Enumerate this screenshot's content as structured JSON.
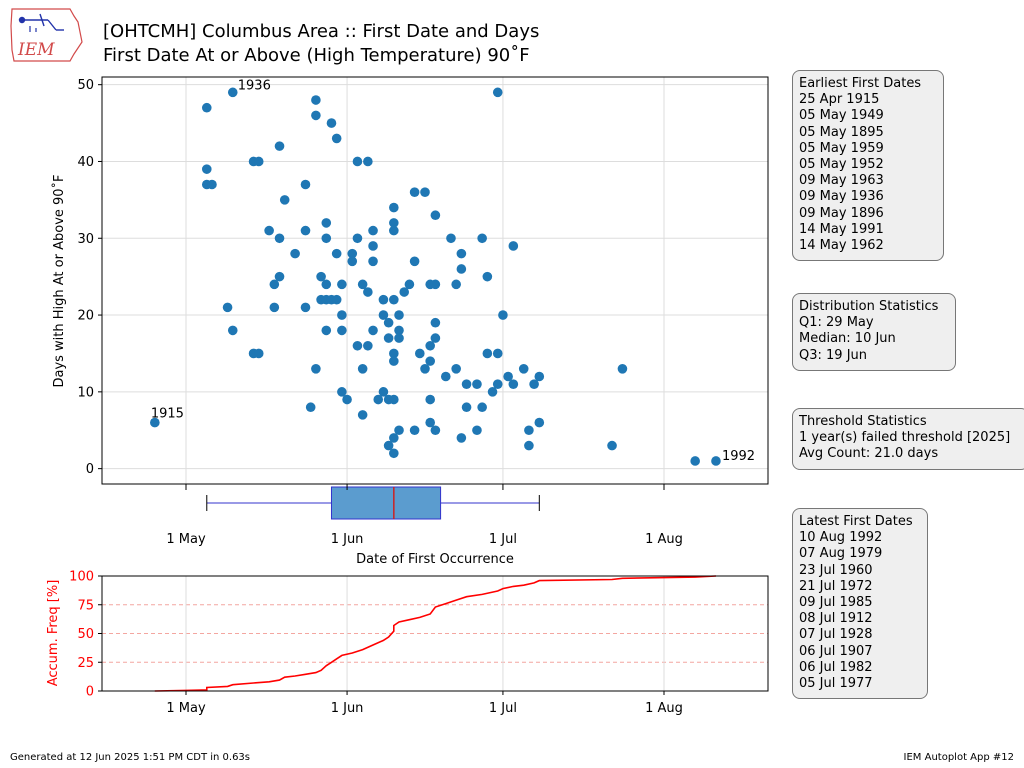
{
  "header": {
    "logo_text": "IEM",
    "title_line1": "[OHTCMH] Columbus Area :: First Date and Days",
    "title_line2": "First Date At or Above (High Temperature) 90˚F"
  },
  "chart_data": [
    {
      "type": "scatter",
      "xlabel": "Date of First Occurrence",
      "ylabel": "Days with High At or Above 90˚F",
      "x_ticks": [
        "1 May",
        "1 Jun",
        "1 Jul",
        "1 Aug"
      ],
      "y_ticks": [
        "0",
        "10",
        "20",
        "30",
        "40",
        "50"
      ],
      "ylim": [
        -2,
        51
      ],
      "grid": true,
      "x_unit": "date",
      "points": [
        [
          "Apr 25",
          6
        ],
        [
          "May 5",
          47
        ],
        [
          "May 5",
          39
        ],
        [
          "May 5",
          37
        ],
        [
          "May 6",
          37
        ],
        [
          "May 9",
          21
        ],
        [
          "May 10",
          49
        ],
        [
          "May 10",
          18
        ],
        [
          "May 14",
          40
        ],
        [
          "May 15",
          40
        ],
        [
          "May 14",
          15
        ],
        [
          "May 15",
          15
        ],
        [
          "May 17",
          31
        ],
        [
          "May 18",
          24
        ],
        [
          "May 18",
          21
        ],
        [
          "May 19",
          42
        ],
        [
          "May 19",
          30
        ],
        [
          "May 19",
          25
        ],
        [
          "May 20",
          35
        ],
        [
          "May 22",
          28
        ],
        [
          "May 24",
          37
        ],
        [
          "May 24",
          31
        ],
        [
          "May 24",
          21
        ],
        [
          "May 25",
          8
        ],
        [
          "May 26",
          48
        ],
        [
          "May 26",
          46
        ],
        [
          "May 26",
          13
        ],
        [
          "May 27",
          25
        ],
        [
          "May 27",
          22
        ],
        [
          "May 28",
          32
        ],
        [
          "May 28",
          30
        ],
        [
          "May 28",
          24
        ],
        [
          "May 28",
          22
        ],
        [
          "May 28",
          18
        ],
        [
          "May 29",
          45
        ],
        [
          "May 29",
          22
        ],
        [
          "May 30",
          43
        ],
        [
          "May 30",
          28
        ],
        [
          "May 30",
          22
        ],
        [
          "May 31",
          24
        ],
        [
          "May 31",
          20
        ],
        [
          "May 31",
          18
        ],
        [
          "May 31",
          10
        ],
        [
          "Jun 1",
          9
        ],
        [
          "Jun 2",
          28
        ],
        [
          "Jun 2",
          27
        ],
        [
          "Jun 3",
          40
        ],
        [
          "Jun 3",
          30
        ],
        [
          "Jun 3",
          16
        ],
        [
          "Jun 4",
          24
        ],
        [
          "Jun 4",
          13
        ],
        [
          "Jun 4",
          7
        ],
        [
          "Jun 5",
          40
        ],
        [
          "Jun 5",
          23
        ],
        [
          "Jun 5",
          16
        ],
        [
          "Jun 6",
          31
        ],
        [
          "Jun 6",
          29
        ],
        [
          "Jun 6",
          27
        ],
        [
          "Jun 6",
          18
        ],
        [
          "Jun 7",
          9
        ],
        [
          "Jun 8",
          22
        ],
        [
          "Jun 8",
          20
        ],
        [
          "Jun 8",
          10
        ],
        [
          "Jun 9",
          19
        ],
        [
          "Jun 9",
          17
        ],
        [
          "Jun 9",
          9
        ],
        [
          "Jun 9",
          3
        ],
        [
          "Jun 10",
          34
        ],
        [
          "Jun 10",
          32
        ],
        [
          "Jun 10",
          31
        ],
        [
          "Jun 10",
          22
        ],
        [
          "Jun 10",
          15
        ],
        [
          "Jun 10",
          14
        ],
        [
          "Jun 10",
          9
        ],
        [
          "Jun 10",
          4
        ],
        [
          "Jun 10",
          2
        ],
        [
          "Jun 11",
          20
        ],
        [
          "Jun 11",
          18
        ],
        [
          "Jun 11",
          17
        ],
        [
          "Jun 11",
          5
        ],
        [
          "Jun 12",
          23
        ],
        [
          "Jun 13",
          24
        ],
        [
          "Jun 14",
          36
        ],
        [
          "Jun 14",
          27
        ],
        [
          "Jun 14",
          5
        ],
        [
          "Jun 15",
          15
        ],
        [
          "Jun 16",
          36
        ],
        [
          "Jun 16",
          13
        ],
        [
          "Jun 17",
          24
        ],
        [
          "Jun 17",
          16
        ],
        [
          "Jun 17",
          14
        ],
        [
          "Jun 17",
          9
        ],
        [
          "Jun 17",
          6
        ],
        [
          "Jun 18",
          33
        ],
        [
          "Jun 18",
          24
        ],
        [
          "Jun 18",
          19
        ],
        [
          "Jun 18",
          17
        ],
        [
          "Jun 18",
          5
        ],
        [
          "Jun 20",
          12
        ],
        [
          "Jun 21",
          30
        ],
        [
          "Jun 22",
          24
        ],
        [
          "Jun 22",
          13
        ],
        [
          "Jun 23",
          28
        ],
        [
          "Jun 23",
          26
        ],
        [
          "Jun 23",
          4
        ],
        [
          "Jun 24",
          11
        ],
        [
          "Jun 24",
          8
        ],
        [
          "Jun 26",
          11
        ],
        [
          "Jun 26",
          5
        ],
        [
          "Jun 27",
          30
        ],
        [
          "Jun 27",
          8
        ],
        [
          "Jun 28",
          25
        ],
        [
          "Jun 28",
          15
        ],
        [
          "Jun 29",
          10
        ],
        [
          "Jun 30",
          49
        ],
        [
          "Jun 30",
          15
        ],
        [
          "Jun 30",
          11
        ],
        [
          "Jul 1",
          20
        ],
        [
          "Jul 2",
          12
        ],
        [
          "Jul 3",
          29
        ],
        [
          "Jul 3",
          11
        ],
        [
          "Jul 5",
          13
        ],
        [
          "Jul 6",
          5
        ],
        [
          "Jul 6",
          3
        ],
        [
          "Jul 7",
          11
        ],
        [
          "Jul 8",
          12
        ],
        [
          "Jul 8",
          6
        ],
        [
          "Jul 22",
          3
        ],
        [
          "Jul 24",
          13
        ],
        [
          "Aug 7",
          1
        ],
        [
          "Aug 11",
          1
        ]
      ],
      "annotations": [
        {
          "label": "1915",
          "x": "Apr 25",
          "y": 6
        },
        {
          "label": "1936",
          "x": "May 10",
          "y": 49
        },
        {
          "label": "1992",
          "x": "Aug 11",
          "y": 1
        }
      ],
      "boxplot": {
        "min": "May 5",
        "q1": "May 29",
        "median": "Jun 10",
        "q3": "Jun 19",
        "max": "Jul 8"
      },
      "colors": {
        "points": "#1f77b4",
        "box_fill": "#5b9ccf",
        "box_edge": "#3333cc",
        "median": "#cc2222",
        "whisker": "#3333cc"
      }
    },
    {
      "type": "line",
      "ylabel": "Accum. Freq [%]",
      "x_ticks": [
        "1 May",
        "1 Jun",
        "1 Jul",
        "1 Aug"
      ],
      "y_ticks": [
        "0",
        "25",
        "50",
        "75",
        "100"
      ],
      "ylim": [
        0,
        100
      ],
      "grid": "horizontal dashed",
      "x_unit": "date",
      "series": [
        {
          "color": "#ff0000",
          "points": [
            [
              "Apr 25",
              0
            ],
            [
              "May 1",
              0.5
            ],
            [
              "May 5",
              1
            ],
            [
              "May 5",
              3
            ],
            [
              "May 9",
              4
            ],
            [
              "May 10",
              5.5
            ],
            [
              "May 14",
              7
            ],
            [
              "May 17",
              8
            ],
            [
              "May 19",
              9.5
            ],
            [
              "May 20",
              12
            ],
            [
              "May 22",
              13
            ],
            [
              "May 24",
              14.5
            ],
            [
              "May 26",
              16
            ],
            [
              "May 27",
              18
            ],
            [
              "May 28",
              22
            ],
            [
              "May 29",
              25
            ],
            [
              "May 30",
              28
            ],
            [
              "May 31",
              31
            ],
            [
              "Jun 2",
              33
            ],
            [
              "Jun 4",
              36
            ],
            [
              "Jun 6",
              40
            ],
            [
              "Jun 8",
              44
            ],
            [
              "Jun 9",
              47
            ],
            [
              "Jun 10",
              52
            ],
            [
              "Jun 10",
              57
            ],
            [
              "Jun 11",
              60
            ],
            [
              "Jun 13",
              62
            ],
            [
              "Jun 15",
              64
            ],
            [
              "Jun 17",
              67
            ],
            [
              "Jun 18",
              73
            ],
            [
              "Jun 20",
              76
            ],
            [
              "Jun 22",
              79
            ],
            [
              "Jun 24",
              82
            ],
            [
              "Jun 27",
              84
            ],
            [
              "Jun 30",
              87
            ],
            [
              "Jul 1",
              89
            ],
            [
              "Jul 3",
              91
            ],
            [
              "Jul 5",
              92
            ],
            [
              "Jul 7",
              94
            ],
            [
              "Jul 8",
              96
            ],
            [
              "Jul 22",
              97
            ],
            [
              "Jul 24",
              98
            ],
            [
              "Aug 7",
              99
            ],
            [
              "Aug 11",
              100
            ]
          ]
        }
      ],
      "colors": {
        "grid": "#f4a6a0",
        "axis_label": "#ff0000"
      }
    }
  ],
  "stats_boxes": {
    "earliest": {
      "title": "Earliest First Dates",
      "items": [
        "25 Apr 1915",
        "05 May 1949",
        "05 May 1895",
        "05 May 1959",
        "05 May 1952",
        "09 May 1963",
        "09 May 1936",
        "09 May 1896",
        "14 May 1991",
        "14 May 1962"
      ]
    },
    "distribution": {
      "title": "Distribution Statistics",
      "items": [
        "Q1: 29 May",
        "Median: 10 Jun",
        "Q3: 19 Jun"
      ]
    },
    "threshold": {
      "title": "Threshold Statistics",
      "items": [
        "1 year(s) failed threshold [2025]",
        "Avg Count: 21.0 days"
      ]
    },
    "latest": {
      "title": "Latest First Dates",
      "items": [
        "10 Aug 1992",
        "07 Aug 1979",
        "23 Jul 1960",
        "21 Jul 1972",
        "09 Jul 1985",
        "08 Jul 1912",
        "07 Jul 1928",
        "06 Jul 1907",
        "06 Jul 1982",
        "05 Jul 1977"
      ]
    }
  },
  "footer": {
    "left": "Generated at 12 Jun 2025 1:51 PM CDT in 0.63s",
    "right": "IEM Autoplot App #12"
  }
}
